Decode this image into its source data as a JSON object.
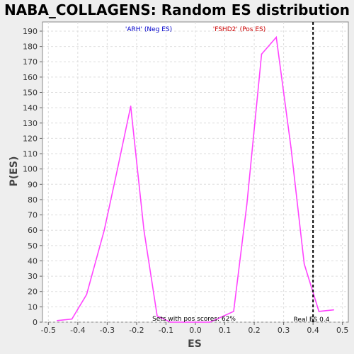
{
  "chart_data": {
    "type": "line",
    "title": "NABA_COLLAGENS: Random ES distribution",
    "xlabel": "ES",
    "ylabel": "P(ES)",
    "xlim": [
      -0.52,
      0.52
    ],
    "ylim": [
      0,
      196
    ],
    "x_ticks": [
      -0.5,
      -0.4,
      -0.3,
      -0.2,
      -0.1,
      0.0,
      0.1,
      0.2,
      0.3,
      0.4,
      0.5
    ],
    "y_ticks": [
      0,
      10,
      20,
      30,
      40,
      50,
      60,
      70,
      80,
      90,
      100,
      110,
      120,
      130,
      140,
      150,
      160,
      170,
      180,
      190
    ],
    "grid": true,
    "series": [
      {
        "color": "#ff44ff",
        "x": [
          -0.47,
          -0.42,
          -0.37,
          -0.31,
          -0.265,
          -0.22,
          -0.175,
          -0.13,
          -0.085,
          -0.04,
          0.01,
          0.05,
          0.13,
          0.175,
          0.225,
          0.275,
          0.325,
          0.37,
          0.42,
          0.47
        ],
        "y": [
          1,
          2,
          18,
          60,
          100,
          141,
          60,
          4,
          0,
          0,
          0,
          0,
          7,
          77,
          175,
          186,
          114,
          38,
          7,
          8
        ]
      }
    ],
    "vline": {
      "x": 0.4,
      "style": "dashed",
      "color": "#000000"
    },
    "annotations": {
      "neg_label": "'ARH' (Neg ES)",
      "neg_color": "#0000cc",
      "pos_label": "'FSHD2' (Pos ES)",
      "pos_color": "#cc0000",
      "pos_scores": "Sets with pos scores: 62%",
      "real_es": "Real ES 0.4"
    }
  }
}
